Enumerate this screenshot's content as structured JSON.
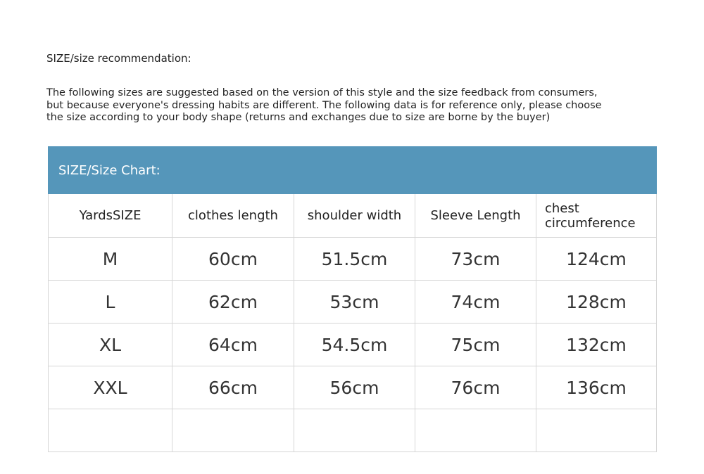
{
  "title": "SIZE/size recommendation:",
  "description": [
    "The following sizes are suggested based on the version of this style and the size feedback from consumers,",
    "but because everyone's dressing habits are different. The following data is for reference only, please choose",
    "the size according to your body shape (returns and exchanges due to size are borne by the buyer)"
  ],
  "table": {
    "banner": "SIZE/Size Chart:",
    "banner_color": "#5596ba",
    "headers": [
      "YardsSIZE",
      "clothes length",
      "shoulder width",
      "Sleeve Length",
      "chest circumference"
    ],
    "rows": [
      [
        "M",
        "60cm",
        "51.5cm",
        "73cm",
        "124cm"
      ],
      [
        "L",
        "62cm",
        "53cm",
        "74cm",
        "128cm"
      ],
      [
        "XL",
        "64cm",
        "54.5cm",
        "75cm",
        "132cm"
      ],
      [
        "XXL",
        "66cm",
        "56cm",
        "76cm",
        "136cm"
      ],
      [
        "",
        "",
        "",
        "",
        ""
      ]
    ]
  }
}
